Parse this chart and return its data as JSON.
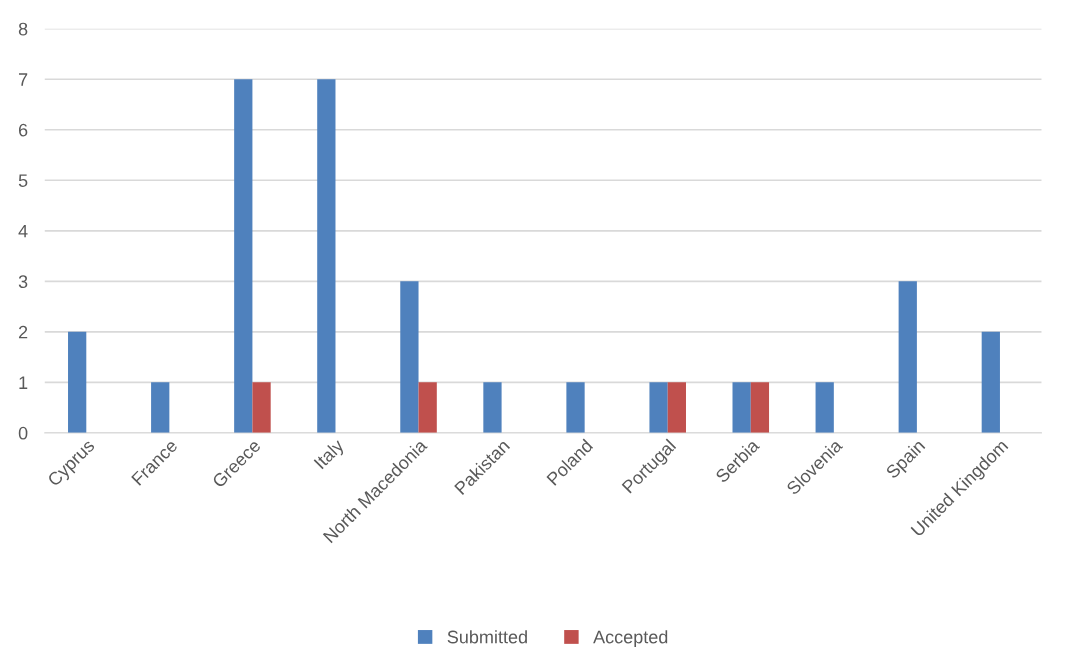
{
  "chart_data": {
    "type": "bar",
    "categories": [
      "Cyprus",
      "France",
      "Greece",
      "Italy",
      "North Macedonia",
      "Pakistan",
      "Poland",
      "Portugal",
      "Serbia",
      "Slovenia",
      "Spain",
      "United Kingdom"
    ],
    "series": [
      {
        "name": "Submitted",
        "color": "#4f81bd",
        "values": [
          2,
          1,
          7,
          7,
          3,
          1,
          1,
          1,
          1,
          1,
          3,
          2
        ]
      },
      {
        "name": "Accepted",
        "color": "#c0504d",
        "values": [
          0,
          0,
          1,
          0,
          1,
          0,
          0,
          1,
          1,
          0,
          0,
          0
        ]
      }
    ],
    "ylim": [
      0,
      8
    ],
    "yticks": [
      0,
      1,
      2,
      3,
      4,
      5,
      6,
      7,
      8
    ],
    "grid": "y",
    "legend": "bottom"
  }
}
